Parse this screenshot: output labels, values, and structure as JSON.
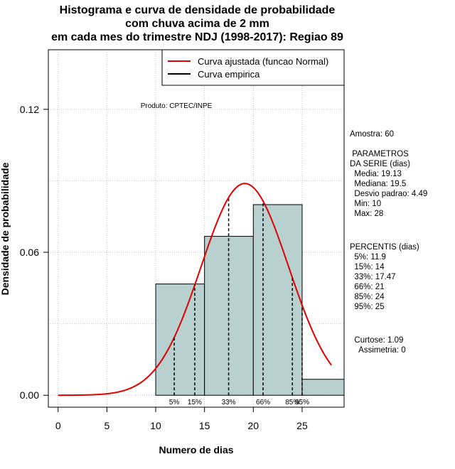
{
  "chart_data": {
    "type": "bar",
    "title_lines": [
      "Histograma e curva de densidade de probabilidade",
      "com chuva acima de 2 mm",
      "em cada mes do trimestre NDJ (1998-2017): Regiao 89"
    ],
    "xlabel": "Numero de dias",
    "ylabel": "Densidade de probabilidade",
    "xlim": [
      -1,
      29.3
    ],
    "ylim": [
      -0.005,
      0.145
    ],
    "x_ticks": [
      0,
      5,
      10,
      15,
      20,
      25
    ],
    "y_ticks": [
      0.0,
      0.06,
      0.12
    ],
    "y_tick_labels": [
      "0.00",
      "0.06",
      "0.12"
    ],
    "grid": true,
    "bins": [
      {
        "from": 10,
        "to": 15,
        "density": 0.0467
      },
      {
        "from": 15,
        "to": 20,
        "density": 0.0667
      },
      {
        "from": 20,
        "to": 25,
        "density": 0.08
      },
      {
        "from": 25,
        "to": 30,
        "density": 0.0067
      }
    ],
    "normal_curve": {
      "mean": 19.13,
      "sd": 4.49,
      "x_from": 0,
      "x_to": 28,
      "color": "#e00000"
    },
    "percentile_lines": [
      {
        "label": "5%",
        "x": 11.9
      },
      {
        "label": "15%",
        "x": 14
      },
      {
        "label": "33%",
        "x": 17.47
      },
      {
        "label": "66%",
        "x": 21
      },
      {
        "label": "85%",
        "x": 24
      },
      {
        "label": "95%",
        "x": 25
      }
    ],
    "legend": {
      "position": "top-right",
      "entries": [
        {
          "label": "Curva ajustada (funcao Normal)",
          "color": "#e00000"
        },
        {
          "label": "Curva empirica",
          "color": "#000000"
        }
      ]
    },
    "annotation": "Produto: CPTEC/INPE",
    "bar_color": "#b8d0d0"
  },
  "stats": {
    "amostra": "Amostra: 60",
    "parametros_title1": " PARAMETROS",
    "parametros_title2": "DA SERIE (dias)",
    "media": "  Media: 19.13",
    "mediana": "  Mediana: 19.5",
    "desvio": "  Desvio padrao: 4.49",
    "min": "  Min: 10",
    "max": "  Max: 28",
    "percentis_title": "PERCENTIS (dias)",
    "p5": "  5%: 11.9",
    "p15": "  15%: 14",
    "p33": "  33%: 17.47",
    "p66": "  66%: 21",
    "p85": "  85%: 24",
    "p95": "  95%: 25",
    "curtose": "  Curtose: 1.09",
    "assimetria": "    Assimetria: 0"
  }
}
